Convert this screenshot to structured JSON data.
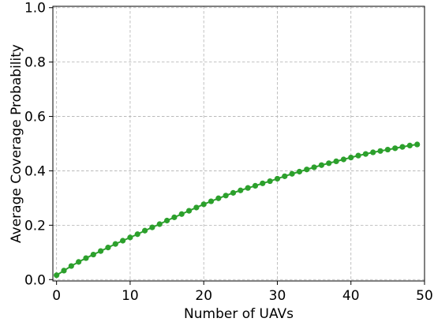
{
  "chart_data": {
    "type": "line",
    "title": "",
    "xlabel": "Number of UAVs",
    "ylabel": "Average Coverage Probability",
    "xlim": [
      -0.5,
      50
    ],
    "ylim": [
      -0.005,
      1.005
    ],
    "xticks": [
      0,
      10,
      20,
      30,
      40,
      50
    ],
    "xtick_labels": [
      "0",
      "10",
      "20",
      "30",
      "40",
      "50"
    ],
    "yticks": [
      0.0,
      0.2,
      0.4,
      0.6,
      0.8,
      1.0
    ],
    "ytick_labels": [
      "0.0",
      "0.2",
      "0.4",
      "0.6",
      "0.8",
      "1.0"
    ],
    "grid": true,
    "series": [
      {
        "color": "#2ca02c",
        "marker": "circle",
        "x": [
          0,
          1,
          2,
          3,
          4,
          5,
          6,
          7,
          8,
          9,
          10,
          11,
          12,
          13,
          14,
          15,
          16,
          17,
          18,
          19,
          20,
          21,
          22,
          23,
          24,
          25,
          26,
          27,
          28,
          29,
          30,
          31,
          32,
          33,
          34,
          35,
          36,
          37,
          38,
          39,
          40,
          41,
          42,
          43,
          44,
          45,
          46,
          47,
          48,
          49
        ],
        "y": [
          0.016,
          0.033,
          0.05,
          0.065,
          0.079,
          0.092,
          0.105,
          0.118,
          0.131,
          0.143,
          0.155,
          0.167,
          0.18,
          0.192,
          0.204,
          0.217,
          0.229,
          0.241,
          0.253,
          0.265,
          0.277,
          0.288,
          0.299,
          0.309,
          0.319,
          0.328,
          0.337,
          0.345,
          0.354,
          0.362,
          0.371,
          0.38,
          0.389,
          0.397,
          0.405,
          0.413,
          0.421,
          0.428,
          0.435,
          0.442,
          0.449,
          0.456,
          0.462,
          0.468,
          0.473,
          0.478,
          0.483,
          0.488,
          0.493,
          0.497
        ]
      }
    ]
  }
}
